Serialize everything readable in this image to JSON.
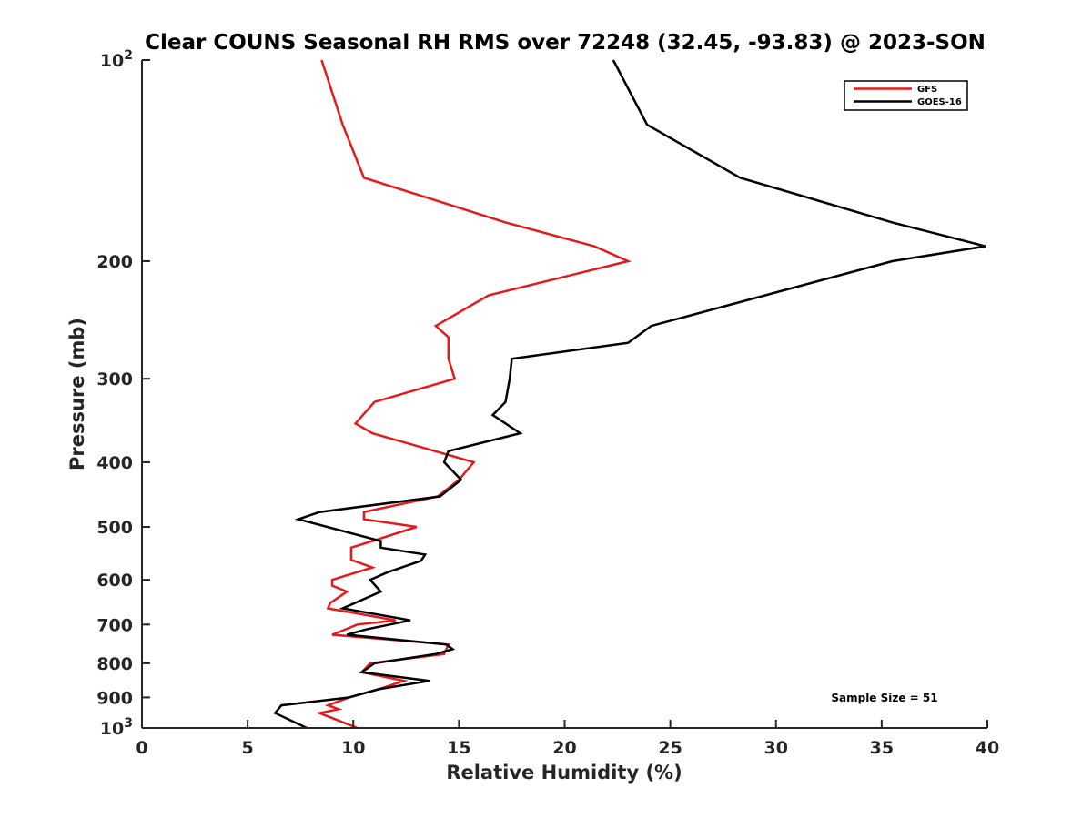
{
  "chart_data": {
    "type": "line",
    "title": "Clear COUNS Seasonal RH RMS over 72248 (32.45, -93.83) @ 2023-SON",
    "xlabel": "Relative Humidity (%)",
    "ylabel": "Pressure (mb)",
    "xlim": [
      0,
      40
    ],
    "ylim": [
      100,
      1000
    ],
    "yscale": "log",
    "yreversed": true,
    "xticks": [
      0,
      5,
      10,
      15,
      20,
      25,
      30,
      35,
      40
    ],
    "xtick_labels": [
      "0",
      "5",
      "10",
      "15",
      "20",
      "25",
      "30",
      "35",
      "40"
    ],
    "yticks": [
      100,
      200,
      300,
      400,
      500,
      600,
      700,
      800,
      900,
      1000
    ],
    "ytick_labels": [
      {
        "base": "10",
        "exp": "2"
      },
      {
        "base": "200",
        "exp": ""
      },
      {
        "base": "300",
        "exp": ""
      },
      {
        "base": "400",
        "exp": ""
      },
      {
        "base": "500",
        "exp": ""
      },
      {
        "base": "600",
        "exp": ""
      },
      {
        "base": "700",
        "exp": ""
      },
      {
        "base": "800",
        "exp": ""
      },
      {
        "base": "900",
        "exp": ""
      },
      {
        "base": "10",
        "exp": "3"
      }
    ],
    "grid": false,
    "legend_position": "top-right",
    "annotation": "Sample Size = 51",
    "series": [
      {
        "name": "GFS",
        "color": "#e41a1c",
        "points": [
          [
            8.5,
            100
          ],
          [
            9.5,
            125
          ],
          [
            10.5,
            150
          ],
          [
            17.2,
            175
          ],
          [
            21.4,
            190
          ],
          [
            23.0,
            200
          ],
          [
            16.4,
            225
          ],
          [
            13.9,
            250
          ],
          [
            14.5,
            260
          ],
          [
            14.5,
            280
          ],
          [
            14.8,
            300
          ],
          [
            11.0,
            325
          ],
          [
            10.1,
            350
          ],
          [
            10.9,
            362
          ],
          [
            12.6,
            375
          ],
          [
            15.7,
            400
          ],
          [
            15.0,
            425
          ],
          [
            14.0,
            450
          ],
          [
            10.5,
            475
          ],
          [
            10.5,
            487
          ],
          [
            13.0,
            500
          ],
          [
            10.9,
            525
          ],
          [
            9.9,
            537
          ],
          [
            9.9,
            560
          ],
          [
            10.9,
            575
          ],
          [
            9.0,
            600
          ],
          [
            9.0,
            612
          ],
          [
            9.7,
            625
          ],
          [
            8.9,
            650
          ],
          [
            8.8,
            662
          ],
          [
            12.0,
            690
          ],
          [
            10.2,
            700
          ],
          [
            9.0,
            725
          ],
          [
            14.5,
            750
          ],
          [
            14.3,
            775
          ],
          [
            10.8,
            800
          ],
          [
            10.4,
            825
          ],
          [
            12.4,
            850
          ],
          [
            11.2,
            875
          ],
          [
            9.8,
            900
          ],
          [
            8.8,
            925
          ],
          [
            9.3,
            937
          ],
          [
            8.4,
            950
          ],
          [
            10.2,
            1000
          ]
        ]
      },
      {
        "name": "GOES-16",
        "color": "#000000",
        "points": [
          [
            22.3,
            100
          ],
          [
            23.9,
            125
          ],
          [
            28.3,
            150
          ],
          [
            35.5,
            175
          ],
          [
            39.9,
            190
          ],
          [
            35.5,
            200
          ],
          [
            24.1,
            250
          ],
          [
            23.0,
            265
          ],
          [
            17.5,
            280
          ],
          [
            17.4,
            300
          ],
          [
            17.2,
            325
          ],
          [
            16.6,
            340
          ],
          [
            17.9,
            362
          ],
          [
            14.5,
            385
          ],
          [
            14.3,
            400
          ],
          [
            15.1,
            425
          ],
          [
            14.1,
            450
          ],
          [
            8.4,
            475
          ],
          [
            7.4,
            487
          ],
          [
            11.3,
            525
          ],
          [
            11.3,
            537
          ],
          [
            13.4,
            550
          ],
          [
            13.2,
            562
          ],
          [
            11.6,
            585
          ],
          [
            10.8,
            600
          ],
          [
            11.3,
            625
          ],
          [
            9.5,
            662
          ],
          [
            12.7,
            690
          ],
          [
            10.6,
            712
          ],
          [
            9.7,
            725
          ],
          [
            14.4,
            750
          ],
          [
            14.7,
            762
          ],
          [
            13.9,
            775
          ],
          [
            11.0,
            800
          ],
          [
            10.4,
            825
          ],
          [
            13.6,
            850
          ],
          [
            11.2,
            875
          ],
          [
            9.8,
            900
          ],
          [
            6.6,
            925
          ],
          [
            6.3,
            950
          ],
          [
            7.8,
            1000
          ]
        ]
      }
    ]
  }
}
